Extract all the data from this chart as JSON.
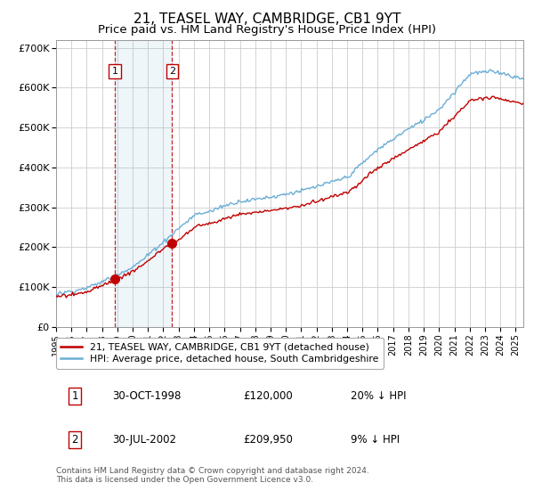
{
  "title": "21, TEASEL WAY, CAMBRIDGE, CB1 9YT",
  "subtitle": "Price paid vs. HM Land Registry's House Price Index (HPI)",
  "ylim": [
    0,
    720000
  ],
  "yticks": [
    0,
    100000,
    200000,
    300000,
    400000,
    500000,
    600000,
    700000
  ],
  "ytick_labels": [
    "£0",
    "£100K",
    "£200K",
    "£300K",
    "£400K",
    "£500K",
    "£600K",
    "£700K"
  ],
  "hpi_color": "#6baed6",
  "price_color": "#c00000",
  "sale1_date_num": 1998.83,
  "sale1_price": 120000,
  "sale1_label": "1",
  "sale1_date_str": "30-OCT-1998",
  "sale1_price_str": "£120,000",
  "sale1_hpi_str": "20% ↓ HPI",
  "sale2_date_num": 2002.58,
  "sale2_price": 209950,
  "sale2_label": "2",
  "sale2_date_str": "30-JUL-2002",
  "sale2_price_str": "£209,950",
  "sale2_hpi_str": "9% ↓ HPI",
  "legend_line1": "21, TEASEL WAY, CAMBRIDGE, CB1 9YT (detached house)",
  "legend_line2": "HPI: Average price, detached house, South Cambridgeshire",
  "footnote": "Contains HM Land Registry data © Crown copyright and database right 2024.\nThis data is licensed under the Open Government Licence v3.0.",
  "background_color": "#ffffff",
  "grid_color": "#cccccc",
  "title_fontsize": 11,
  "subtitle_fontsize": 9.5,
  "xlim_start": 1995,
  "xlim_end": 2025.5
}
